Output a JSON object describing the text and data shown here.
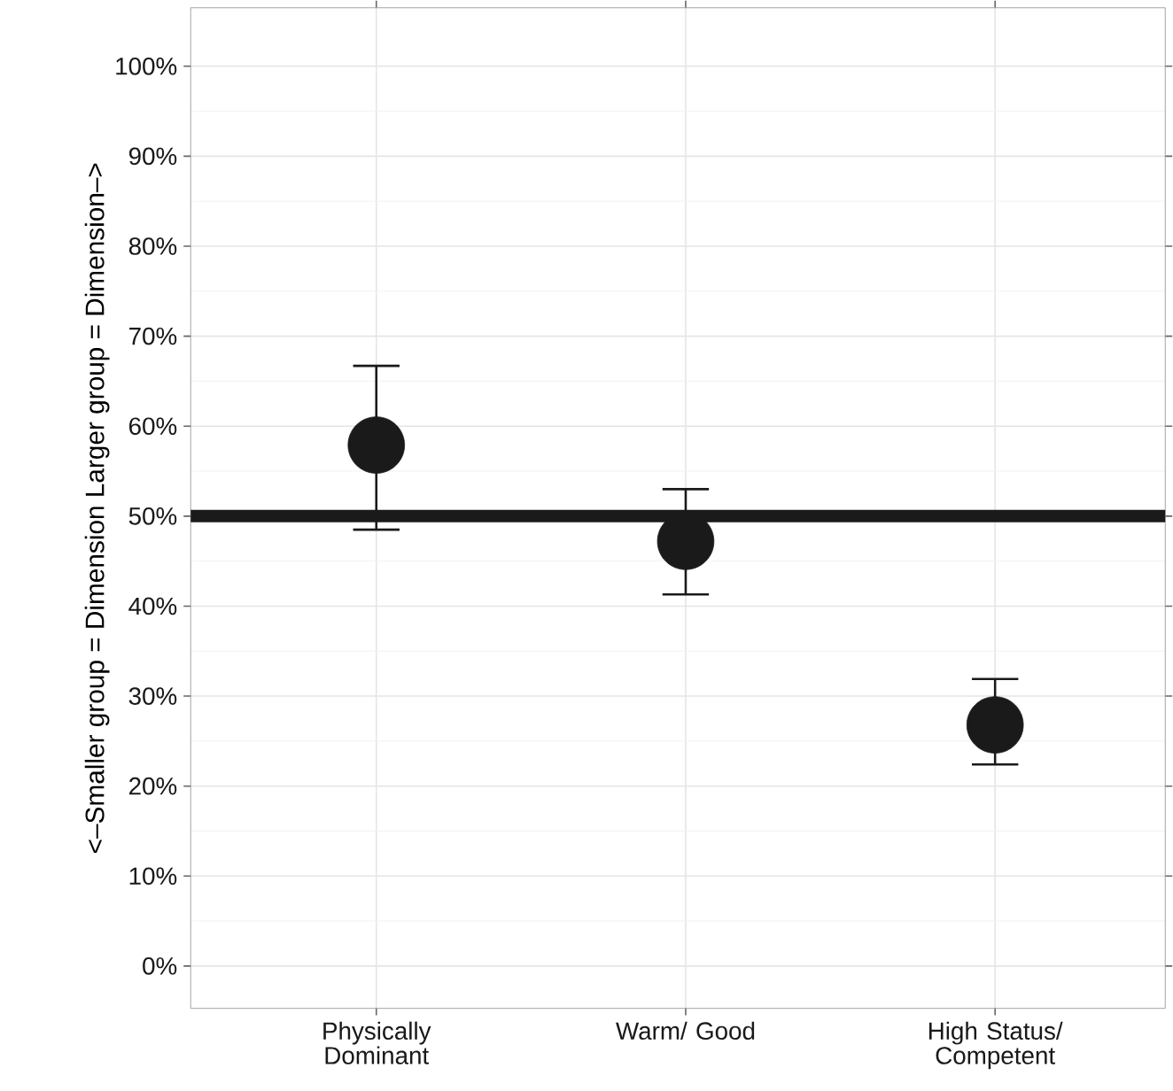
{
  "chart_data": {
    "type": "scatter",
    "ylabel": "<–Smaller group = Dimension          Larger group = Dimension–>",
    "categories": [
      "Physically Dominant",
      "Warm/ Good",
      "High Status/ Competent"
    ],
    "values": [
      57.9,
      47.2,
      26.8
    ],
    "errors": [
      [
        48.5,
        66.7
      ],
      [
        41.3,
        53.0
      ],
      [
        22.4,
        31.9
      ]
    ],
    "color": "#1a1a1a",
    "ylim": [
      -4.7,
      106.5
    ],
    "yticks": [
      {
        "value": 0,
        "label": "0%"
      },
      {
        "value": 10,
        "label": "10%"
      },
      {
        "value": 20,
        "label": "20%"
      },
      {
        "value": 30,
        "label": "30%"
      },
      {
        "value": 40,
        "label": "40%"
      },
      {
        "value": 50,
        "label": "50%"
      },
      {
        "value": 60,
        "label": "60%"
      },
      {
        "value": 70,
        "label": "70%"
      },
      {
        "value": 80,
        "label": "80%"
      },
      {
        "value": 90,
        "label": "90%"
      },
      {
        "value": 100,
        "label": "100%"
      }
    ],
    "ref_lines": [
      {
        "axis": "y",
        "value": 50,
        "color": "#1a1a1a"
      }
    ],
    "grid": true
  }
}
